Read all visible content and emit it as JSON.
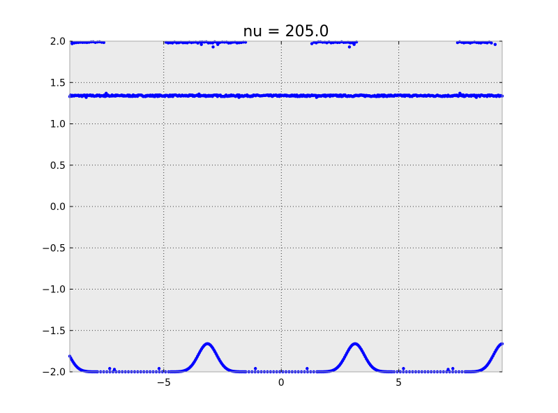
{
  "chart_data": {
    "type": "scatter",
    "title": "nu = 205.0",
    "xlabel": "",
    "ylabel": "",
    "xlim": [
      -9.0,
      9.4
    ],
    "ylim": [
      -2.0,
      2.0
    ],
    "xticks": [
      -5,
      0,
      5
    ],
    "xtick_labels": [
      "−5",
      "0",
      "5"
    ],
    "yticks": [
      -2.0,
      -1.5,
      -1.0,
      -0.5,
      0.0,
      0.5,
      1.0,
      1.5,
      2.0
    ],
    "ytick_labels": [
      "−2.0",
      "−1.5",
      "−1.0",
      "−0.5",
      "0.0",
      "0.5",
      "1.0",
      "1.5",
      "2.0"
    ],
    "grid": true,
    "background_color": "#ebebeb",
    "point_color": "#0000ff",
    "series": [
      {
        "values_description_ok": true,
        "bands": [
          {
            "x_range": [
              -9.0,
              9.4
            ],
            "y": 1.34,
            "jitter": 0.02
          },
          {
            "x_range": [
              -9.0,
              9.4
            ],
            "y": 1.985,
            "sparse": true
          }
        ],
        "bumps": [
          {
            "x_center": -3.14,
            "peak_y": -1.66,
            "width": 0.55
          },
          {
            "x_center": 3.14,
            "peak_y": -1.66,
            "width": 0.55
          },
          {
            "x_center": -9.42,
            "peak_y": -1.66,
            "width": 0.55
          },
          {
            "x_center": 9.42,
            "peak_y": -1.66,
            "width": 0.55
          }
        ],
        "baseline_y": -2.0,
        "outliers": [
          {
            "x": -7.45,
            "y": 1.37
          },
          {
            "x": -7.2,
            "y": 1.35
          },
          {
            "x": -8.3,
            "y": 1.32
          },
          {
            "x": -1.8,
            "y": 1.32
          },
          {
            "x": 1.5,
            "y": 1.32
          },
          {
            "x": 7.6,
            "y": 1.37
          },
          {
            "x": 8.3,
            "y": 1.32
          },
          {
            "x": -3.5,
            "y": 1.36
          },
          {
            "x": -8.9,
            "y": 1.97
          },
          {
            "x": -3.4,
            "y": 1.96
          },
          {
            "x": -2.9,
            "y": 1.93
          },
          {
            "x": -2.7,
            "y": 1.96
          },
          {
            "x": 2.9,
            "y": 1.93
          },
          {
            "x": 3.1,
            "y": 1.96
          },
          {
            "x": 1.3,
            "y": 1.97
          },
          {
            "x": 9.1,
            "y": 1.96
          },
          {
            "x": -7.3,
            "y": -1.96
          },
          {
            "x": -7.1,
            "y": -1.97
          },
          {
            "x": -5.2,
            "y": -1.96
          },
          {
            "x": -1.1,
            "y": -1.96
          },
          {
            "x": 1.1,
            "y": -1.96
          },
          {
            "x": 5.2,
            "y": -1.96
          },
          {
            "x": 7.1,
            "y": -1.97
          },
          {
            "x": 7.3,
            "y": -1.96
          }
        ]
      }
    ]
  }
}
